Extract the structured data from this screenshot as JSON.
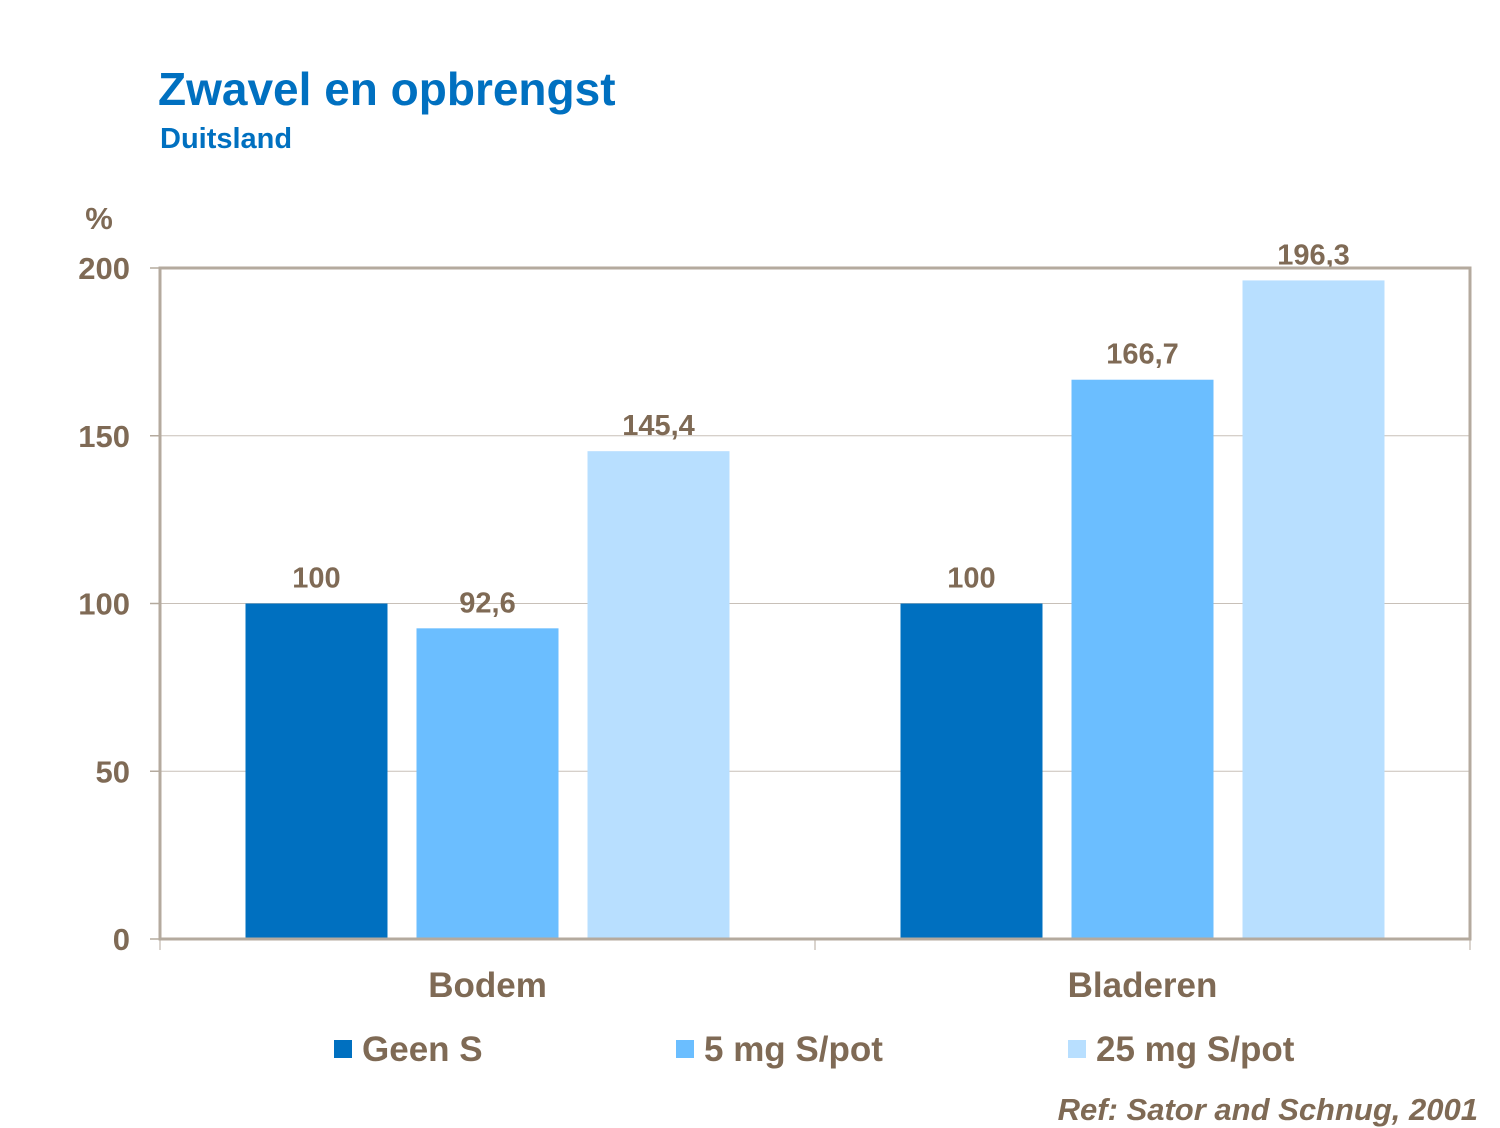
{
  "chart_data": {
    "type": "bar",
    "title": "Zwavel en opbrengst",
    "subtitle": "Duitsland",
    "ylabel": "%",
    "xlabel": "",
    "ylim": [
      0,
      200
    ],
    "yticks": [
      0,
      50,
      100,
      150,
      200
    ],
    "grid": true,
    "legend_position": "bottom",
    "categories": [
      "Bodem",
      "Bladeren"
    ],
    "series": [
      {
        "name": "Geen  S",
        "values": [
          100,
          100
        ],
        "labels": [
          "100",
          "100"
        ],
        "color": "#0070c0"
      },
      {
        "name": "5 mg S/pot",
        "values": [
          92.6,
          166.7
        ],
        "labels": [
          "92,6",
          "166,7"
        ],
        "color": "#6bbeff"
      },
      {
        "name": "25 mg S/pot",
        "values": [
          145.4,
          196.3
        ],
        "labels": [
          "145,4",
          "196,3"
        ],
        "color": "#b8dfff"
      }
    ],
    "annotation": "Ref: Sator and Schnug, 2001"
  }
}
